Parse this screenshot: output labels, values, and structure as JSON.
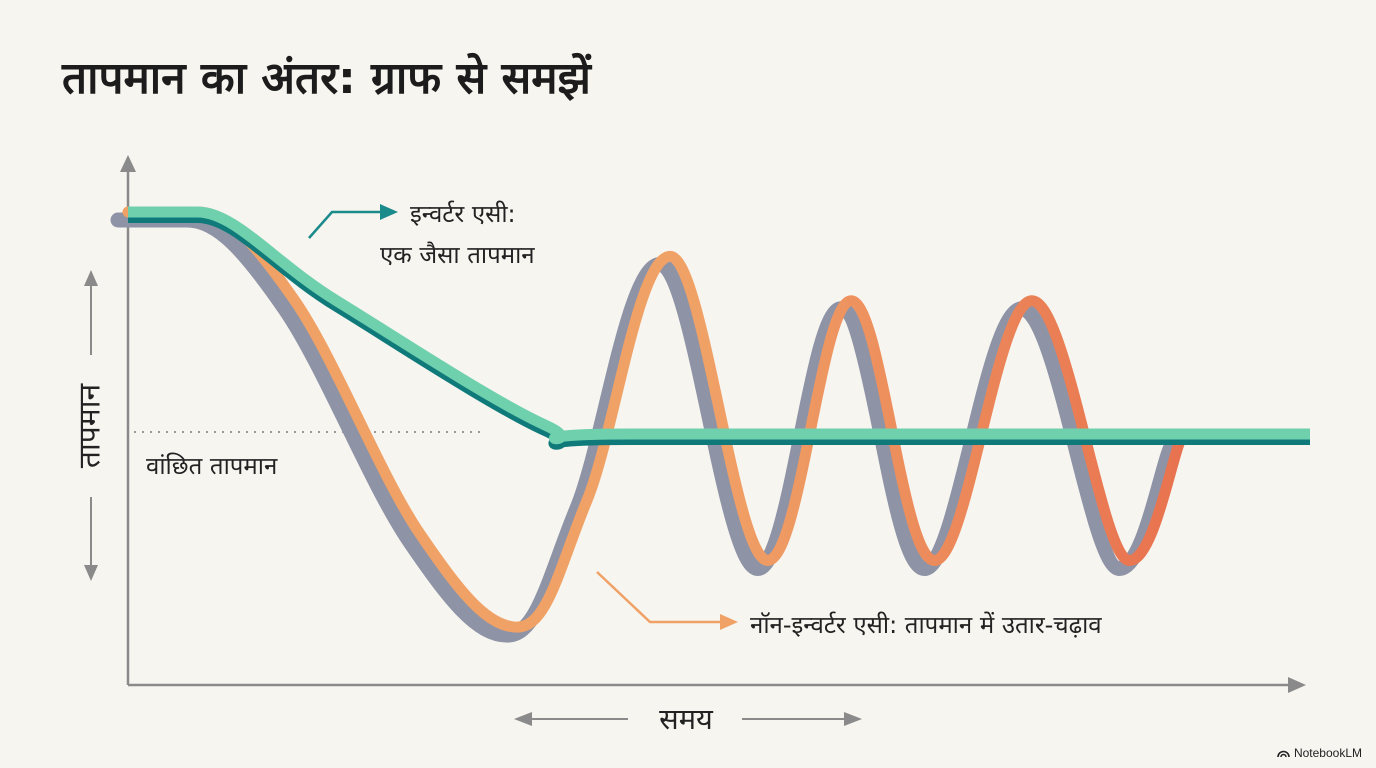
{
  "title": "तापमान का अंतर: ग्राफ से समझें",
  "branding": "NotebookLM",
  "chart_data": {
    "type": "line",
    "title": "तापमान का अंतर: ग्राफ से समझें",
    "xlabel": "समय",
    "ylabel": "तापमान",
    "grid": false,
    "reference_line": {
      "label": "वांछित तापमान",
      "y": 0
    },
    "annotations": [
      {
        "series": "inverter",
        "lines": [
          "इन्वर्टर एसी:",
          "एक जैसा तापमान"
        ]
      },
      {
        "series": "non_inverter",
        "lines": [
          "नॉन-इन्वर्टर एसी: तापमान में उतार-चढ़ाव"
        ]
      }
    ],
    "series": [
      {
        "name": "इन्वर्टर एसी",
        "colors": [
          "#6fd0ad",
          "#107a7a"
        ],
        "points": [
          [
            0,
            1
          ],
          [
            0.5,
            1
          ],
          [
            1.5,
            0.6
          ],
          [
            3,
            0.04
          ],
          [
            3.6,
            0
          ],
          [
            8.5,
            0
          ]
        ]
      },
      {
        "name": "नॉन-इन्वर्टर एसी",
        "colors": [
          "#f0a166",
          "#e8724f",
          "#8e93a6"
        ],
        "points": [
          [
            0,
            1
          ],
          [
            0.5,
            1
          ],
          [
            1.2,
            0.6
          ],
          [
            2.1,
            -0.45
          ],
          [
            2.8,
            -0.87
          ],
          [
            3.3,
            -0.3
          ],
          [
            3.9,
            0.8
          ],
          [
            4.6,
            -0.57
          ],
          [
            5.2,
            0.6
          ],
          [
            5.8,
            -0.57
          ],
          [
            6.5,
            0.6
          ],
          [
            7.2,
            -0.57
          ],
          [
            7.6,
            0
          ]
        ]
      }
    ]
  }
}
